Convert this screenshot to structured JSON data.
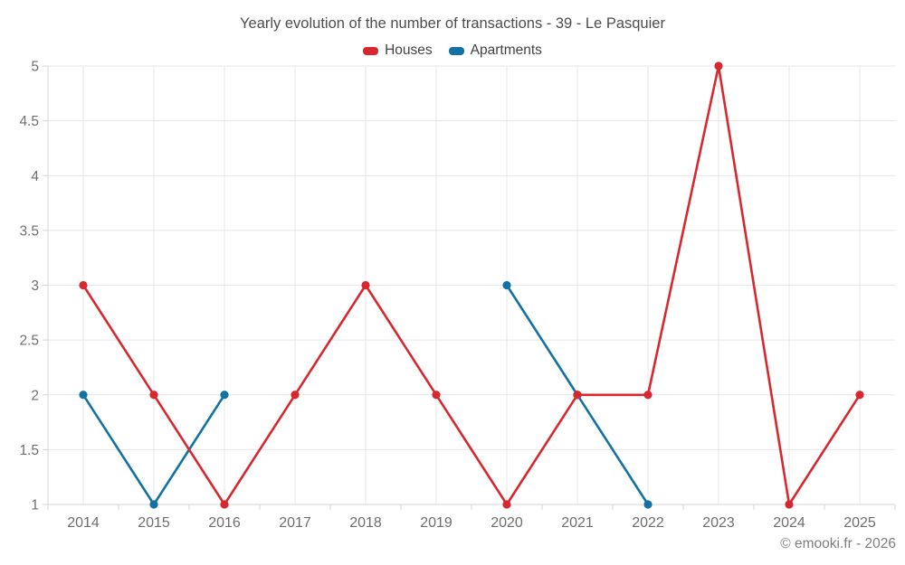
{
  "title": "Yearly evolution of the number of transactions - 39 - Le Pasquier",
  "footer": "© emooki.fr - 2026",
  "colors": {
    "houses": "#d7282f",
    "apartments": "#1272a3",
    "grid": "#e7e7e7",
    "axis": "#d4d4d4",
    "tick_label": "#6e6e6e",
    "title_text": "#4d4d4d"
  },
  "chart_data": {
    "type": "line",
    "title": "Yearly evolution of the number of transactions - 39 - Le Pasquier",
    "categories": [
      "2014",
      "2015",
      "2016",
      "2017",
      "2018",
      "2019",
      "2020",
      "2021",
      "2022",
      "2023",
      "2024",
      "2025"
    ],
    "series": [
      {
        "name": "Houses",
        "color": "#d7282f",
        "values": [
          3,
          2,
          1,
          2,
          3,
          2,
          1,
          2,
          2,
          5,
          1,
          2
        ]
      },
      {
        "name": "Apartments",
        "color": "#1272a3",
        "values": [
          2,
          1,
          2,
          null,
          null,
          null,
          3,
          2,
          1,
          null,
          null,
          null
        ]
      }
    ],
    "xlabel": "",
    "ylabel": "",
    "ylim": [
      1,
      5
    ],
    "yticks": [
      1,
      1.5,
      2,
      2.5,
      3,
      3.5,
      4,
      4.5,
      5
    ],
    "grid": true,
    "legend_position": "top"
  }
}
